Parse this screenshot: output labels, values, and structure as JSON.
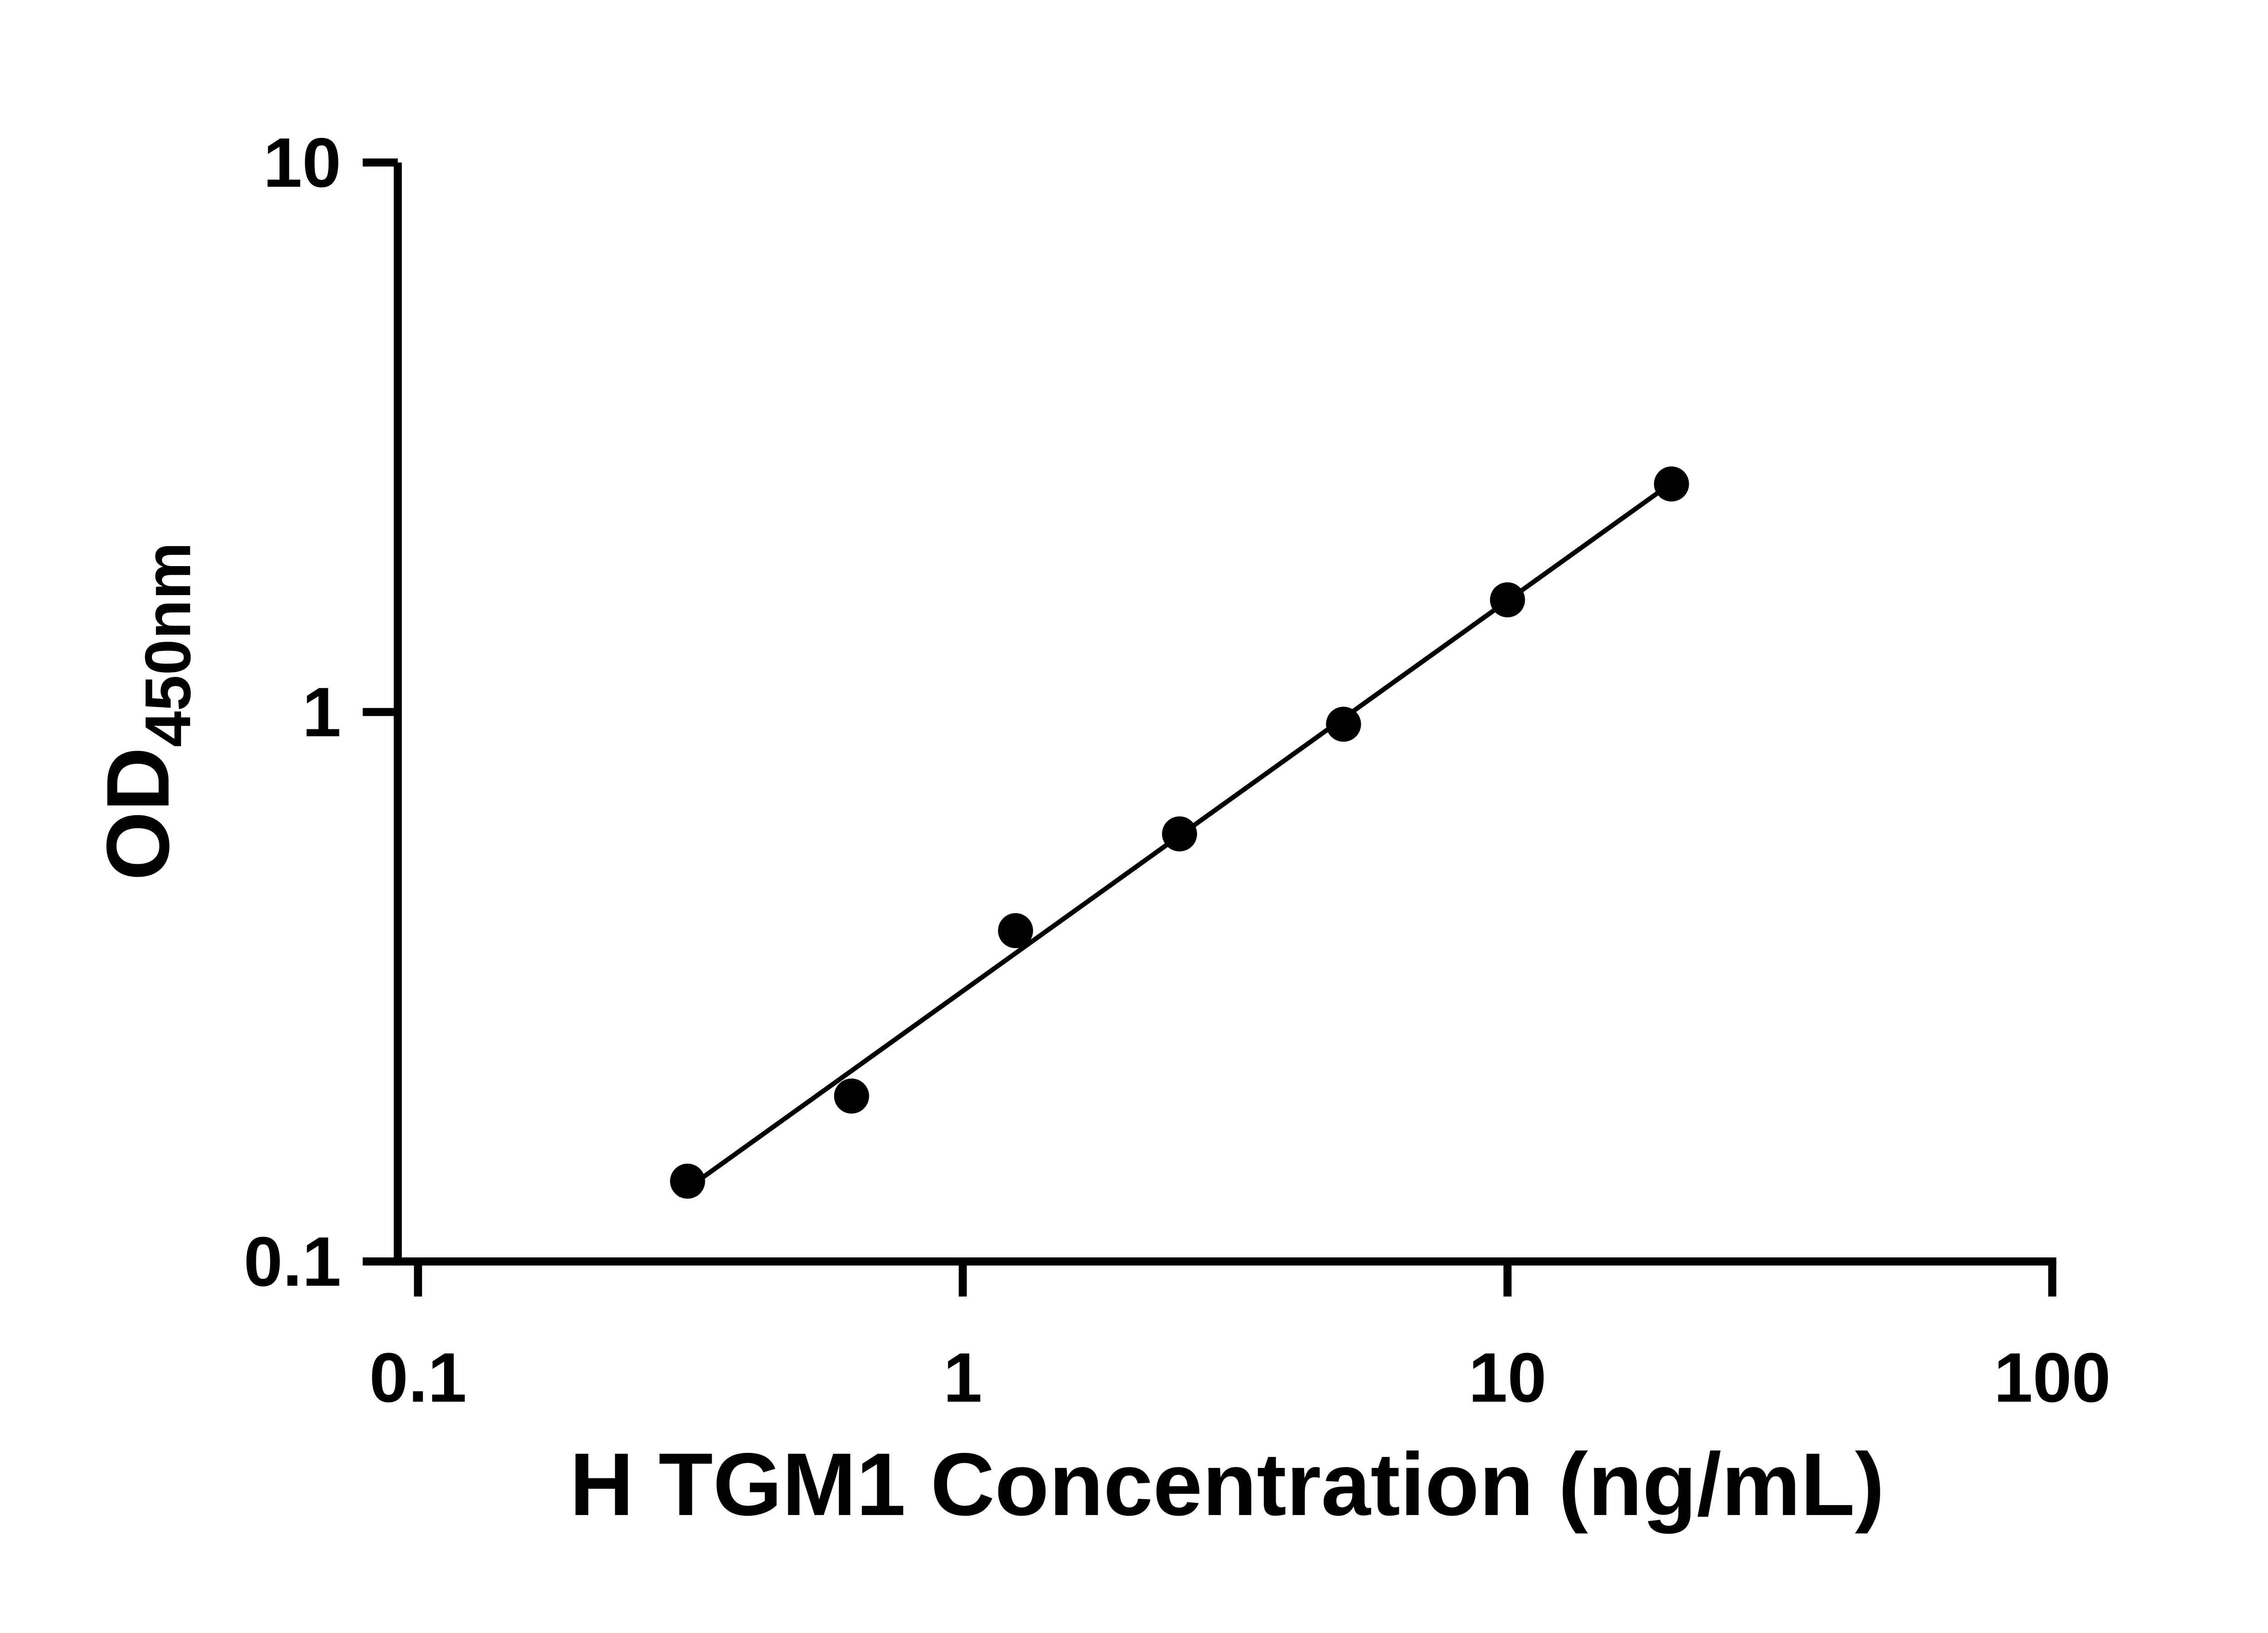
{
  "figure": {
    "background": "#ffffff"
  },
  "chart_data": {
    "type": "scatter",
    "title": "",
    "xlabel": "H TGM1 Concentration (ng/mL)",
    "ylabel": "OD450nm",
    "ylabel_main": "OD",
    "ylabel_sub": "450nm",
    "x_scale": "log10",
    "y_scale": "log10",
    "xlim": [
      0.1,
      100
    ],
    "ylim": [
      0.1,
      10
    ],
    "x_ticks": [
      0.1,
      1,
      10,
      100
    ],
    "x_tick_labels": [
      "0.1",
      "1",
      "10",
      "100"
    ],
    "y_ticks": [
      0.1,
      1,
      10
    ],
    "y_tick_labels": [
      "0.1",
      "1",
      "10"
    ],
    "grid": false,
    "legend": false,
    "axis_color": "#000000",
    "marker": {
      "shape": "circle",
      "color": "#000000",
      "radius_px": 13
    },
    "trend_line": {
      "x1": 0.3,
      "y1": 0.132,
      "x2": 20,
      "y2": 2.61,
      "color": "#000000"
    },
    "points": [
      {
        "x": 0.3125,
        "y": 0.14
      },
      {
        "x": 0.625,
        "y": 0.2
      },
      {
        "x": 1.25,
        "y": 0.4
      },
      {
        "x": 2.5,
        "y": 0.6
      },
      {
        "x": 5,
        "y": 0.95
      },
      {
        "x": 10,
        "y": 1.6
      },
      {
        "x": 20,
        "y": 2.6
      }
    ]
  }
}
